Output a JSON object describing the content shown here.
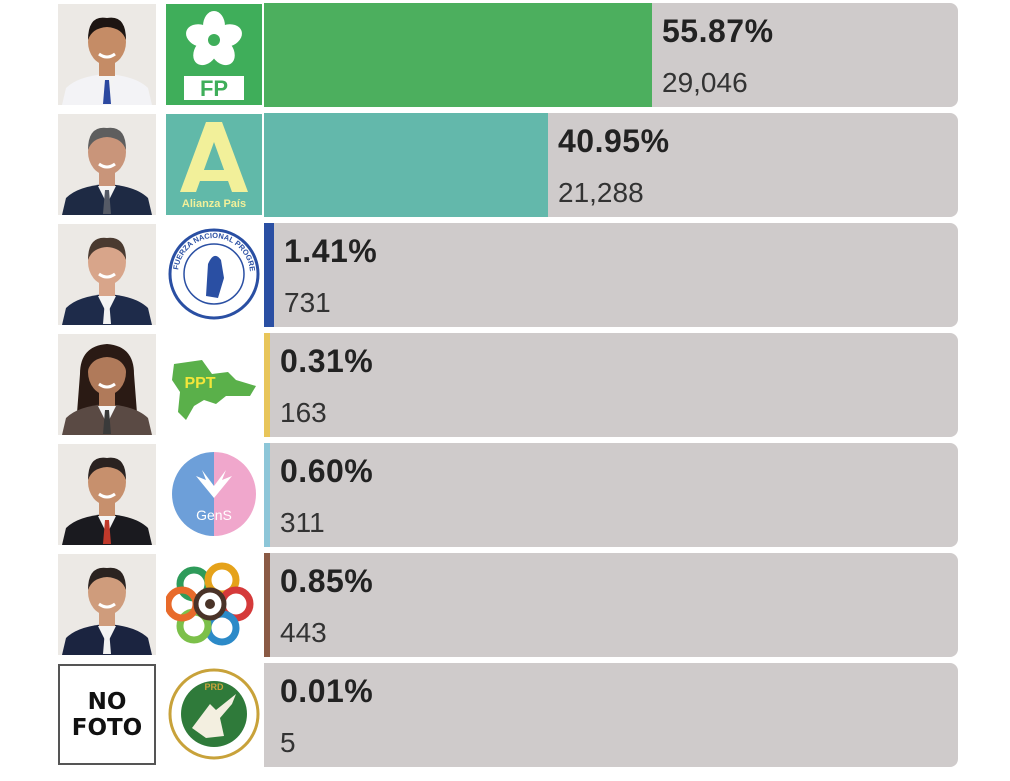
{
  "chart_data": {
    "type": "bar",
    "orientation": "horizontal",
    "unit": "%",
    "series": [
      {
        "party": "FP",
        "logo_text": "FP",
        "percent": 55.87,
        "percent_label": "55.87%",
        "votes": 29046,
        "votes_label": "29,046",
        "color": "#4caf5e"
      },
      {
        "party": "Alianza País",
        "logo_text": "Alianza País",
        "percent": 40.95,
        "percent_label": "40.95%",
        "votes": 21288,
        "votes_label": "21,288",
        "color": "#63b8ab"
      },
      {
        "party": "Fuerza Nacional Progresista",
        "logo_text": "FUERZA NACIONAL PROGRESISTA",
        "percent": 1.41,
        "percent_label": "1.41%",
        "votes": 731,
        "votes_label": "731",
        "color": "#2a4fa3"
      },
      {
        "party": "PPT",
        "logo_text": "PPT",
        "percent": 0.31,
        "percent_label": "0.31%",
        "votes": 163,
        "votes_label": "163",
        "color": "#e8c55a"
      },
      {
        "party": "GenS",
        "logo_text": "GenS",
        "percent": 0.6,
        "percent_label": "0.60%",
        "votes": 311,
        "votes_label": "311",
        "color": "#8dc6d8"
      },
      {
        "party": "",
        "logo_text": "",
        "percent": 0.85,
        "percent_label": "0.85%",
        "votes": 443,
        "votes_label": "443",
        "color": "#8a5a45"
      },
      {
        "party": "PRD",
        "logo_text": "PRD",
        "percent": 0.01,
        "percent_label": "0.01%",
        "votes": 5,
        "votes_label": "5",
        "color": "#cfcbcb",
        "photo_text": "NO\nFOTO"
      }
    ]
  },
  "colors": {
    "track": "#cfcbcb",
    "text": "#222222"
  }
}
